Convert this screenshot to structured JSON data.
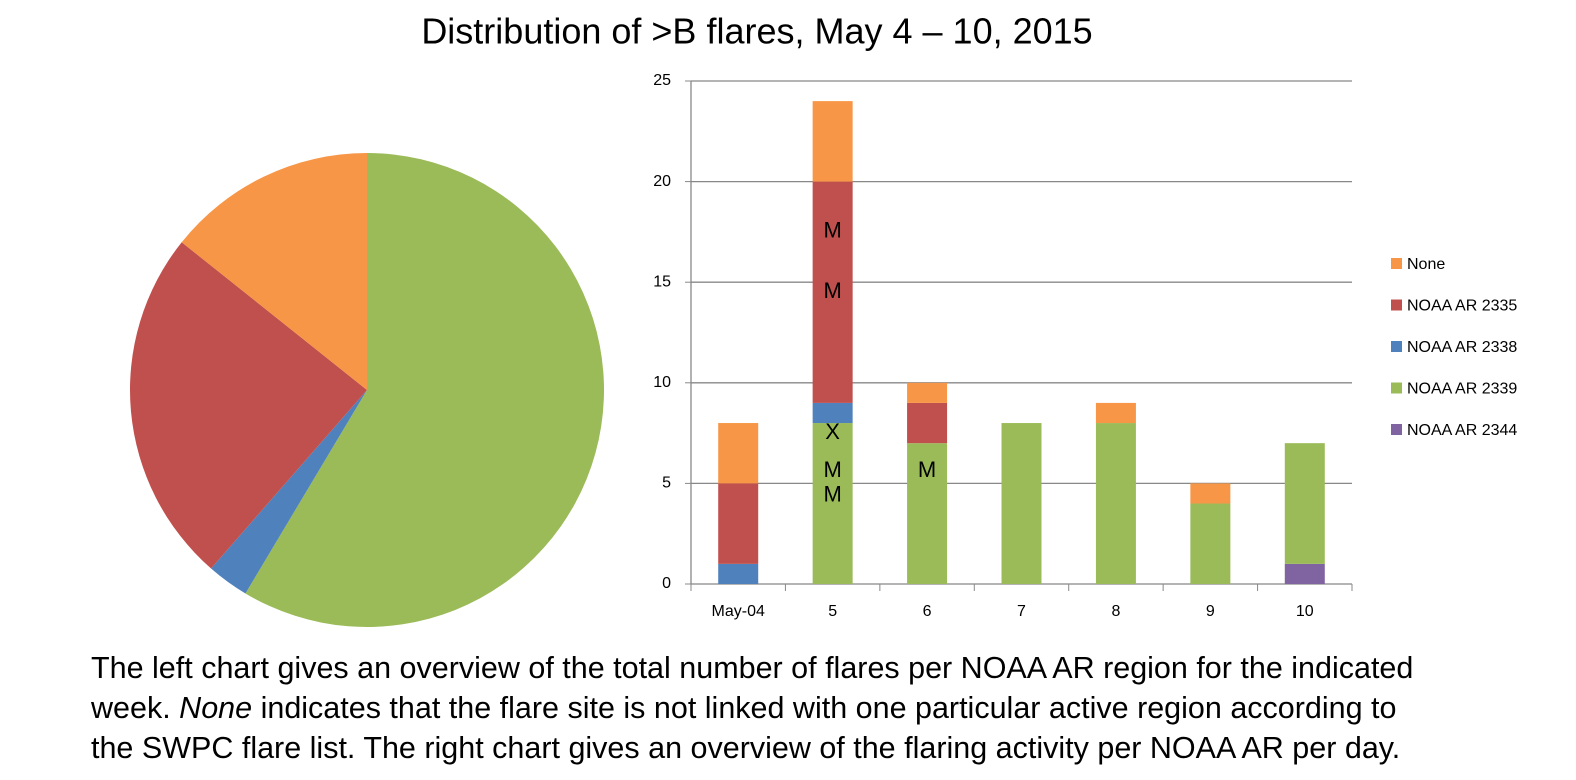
{
  "title": "Distribution of >B flares, May 4 – 10, 2015",
  "caption": [
    "The left chart gives an overview of the total number of flares per NOAA AR region for the indicated",
    "week.",
    "None",
    "indicates that the flare site is not linked with one particular active region according to",
    "the SWPC flare list. The right chart gives an overview of the flaring activity per NOAA AR per day."
  ],
  "chart_data": [
    {
      "type": "pie",
      "values": [
        41,
        2,
        17,
        10
      ],
      "colors": [
        "#9bbb59",
        "#4f81bd",
        "#c0504d",
        "#f79646"
      ]
    },
    {
      "type": "bar",
      "stacked": true,
      "categories": [
        "May-04",
        "5",
        "6",
        "7",
        "8",
        "9",
        "10"
      ],
      "series": [
        {
          "name": "None",
          "color": "#f79646",
          "values": [
            3,
            4,
            1,
            0,
            1,
            1,
            0
          ]
        },
        {
          "name": "NOAA AR 2335",
          "color": "#c0504d",
          "values": [
            4,
            11,
            2,
            0,
            0,
            0,
            0
          ]
        },
        {
          "name": "NOAA AR 2338",
          "color": "#4f81bd",
          "values": [
            1,
            1,
            0,
            0,
            0,
            0,
            0
          ]
        },
        {
          "name": "NOAA AR 2339",
          "color": "#9bbb59",
          "values": [
            0,
            8,
            7,
            8,
            8,
            4,
            6
          ]
        },
        {
          "name": "NOAA AR 2344",
          "color": "#8064a2",
          "values": [
            0,
            0,
            0,
            0,
            0,
            0,
            1
          ]
        }
      ],
      "ylim": [
        0,
        25
      ],
      "yticks": [
        0,
        5,
        10,
        15,
        20,
        25
      ],
      "grid": true,
      "legend": "right",
      "annotations": [
        {
          "text": "M",
          "category": 1,
          "y": 17.5
        },
        {
          "text": "M",
          "category": 1,
          "y": 14.5
        },
        {
          "text": "X",
          "category": 1,
          "y": 7.5
        },
        {
          "text": "M",
          "category": 1,
          "y": 5.6
        },
        {
          "text": "M",
          "category": 1,
          "y": 4.4
        },
        {
          "text": "M",
          "category": 2,
          "y": 5.6
        }
      ]
    }
  ]
}
